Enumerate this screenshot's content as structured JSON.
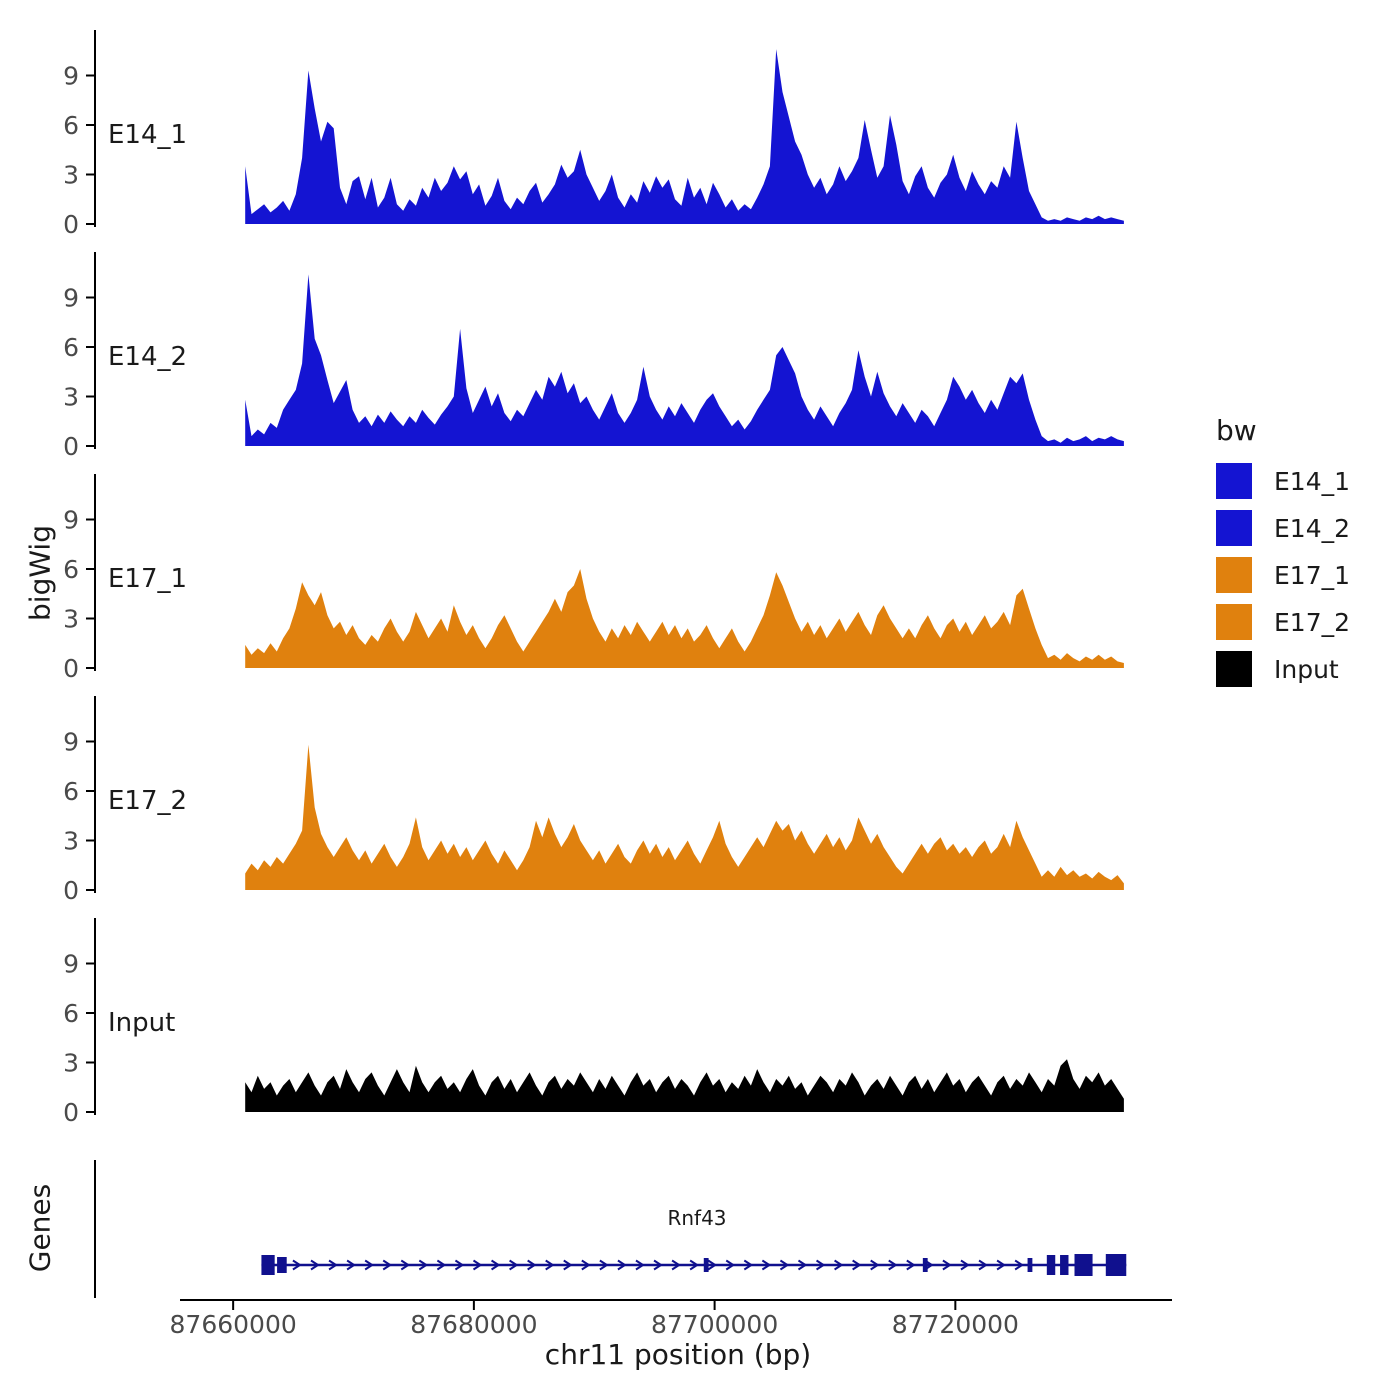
{
  "figure": {
    "y_axis_title": "bigWig",
    "genes_axis_title": "Genes",
    "x_axis_title": "chr11 position (bp)"
  },
  "chart_data": {
    "type": "area",
    "xlabel": "chr11 position (bp)",
    "ylabel": "bigWig",
    "xlim": [
      87656000,
      87738000
    ],
    "ylim": [
      0,
      11
    ],
    "grid": false,
    "legend_position": "right",
    "x_ticks": [
      {
        "pos": 87660000,
        "label": "87660000"
      },
      {
        "pos": 87680000,
        "label": "87680000"
      },
      {
        "pos": 87700000,
        "label": "87700000"
      },
      {
        "pos": 87720000,
        "label": "87720000"
      }
    ],
    "y_ticks": [
      {
        "v": 0,
        "label": "0"
      },
      {
        "v": 3,
        "label": "3"
      },
      {
        "v": 6,
        "label": "6"
      },
      {
        "v": 9,
        "label": "9"
      }
    ],
    "tracks": [
      {
        "name": "E14_1",
        "color": "#1414D2",
        "x_start": 87661000,
        "x_end": 87734000,
        "values": [
          3.5,
          0.6,
          0.9,
          1.2,
          0.7,
          1.0,
          1.4,
          0.8,
          1.8,
          4.0,
          9.3,
          7.0,
          5.0,
          6.2,
          5.8,
          2.2,
          1.2,
          2.6,
          2.9,
          1.5,
          2.8,
          1.0,
          1.6,
          2.8,
          1.2,
          0.8,
          1.5,
          1.1,
          2.2,
          1.6,
          2.8,
          2.0,
          2.5,
          3.5,
          2.7,
          3.2,
          1.8,
          2.4,
          1.1,
          1.7,
          2.8,
          1.4,
          0.9,
          1.6,
          1.2,
          2.0,
          2.5,
          1.3,
          1.8,
          2.4,
          3.6,
          2.8,
          3.2,
          4.5,
          3.0,
          2.2,
          1.4,
          2.0,
          3.0,
          1.6,
          1.0,
          1.8,
          1.3,
          2.6,
          1.9,
          2.9,
          2.2,
          2.7,
          1.5,
          1.1,
          2.8,
          1.6,
          2.2,
          1.2,
          2.5,
          1.8,
          1.0,
          1.5,
          0.8,
          1.2,
          0.9,
          1.6,
          2.4,
          3.5,
          10.6,
          8.0,
          6.5,
          5.0,
          4.2,
          3.0,
          2.2,
          2.8,
          1.8,
          2.4,
          3.5,
          2.6,
          3.2,
          4.0,
          6.3,
          4.5,
          2.8,
          3.5,
          6.6,
          4.8,
          2.6,
          1.8,
          2.9,
          3.5,
          2.2,
          1.6,
          2.5,
          3.0,
          4.2,
          2.8,
          2.0,
          3.2,
          2.4,
          1.8,
          2.6,
          2.2,
          3.5,
          2.8,
          6.2,
          4.0,
          2.0,
          1.2,
          0.4,
          0.2,
          0.3,
          0.2,
          0.4,
          0.3,
          0.2,
          0.4,
          0.3,
          0.5,
          0.3,
          0.4,
          0.3,
          0.2
        ]
      },
      {
        "name": "E14_2",
        "color": "#1414D2",
        "x_start": 87661000,
        "x_end": 87734000,
        "values": [
          2.8,
          0.6,
          1.0,
          0.7,
          1.4,
          1.1,
          2.2,
          2.8,
          3.4,
          5.0,
          10.4,
          6.5,
          5.5,
          4.0,
          2.6,
          3.3,
          4.0,
          2.2,
          1.4,
          1.8,
          1.2,
          1.9,
          1.4,
          2.1,
          1.6,
          1.2,
          1.8,
          1.4,
          2.2,
          1.7,
          1.3,
          1.9,
          2.4,
          3.0,
          7.1,
          3.5,
          2.0,
          2.8,
          3.6,
          2.4,
          3.2,
          2.0,
          1.5,
          2.2,
          1.8,
          2.6,
          3.4,
          2.8,
          4.2,
          3.6,
          4.5,
          3.2,
          3.8,
          2.6,
          3.0,
          2.2,
          1.6,
          2.4,
          3.2,
          2.0,
          1.4,
          2.0,
          2.8,
          4.8,
          3.0,
          2.2,
          1.6,
          2.4,
          1.8,
          2.6,
          2.0,
          1.4,
          2.2,
          2.8,
          3.2,
          2.4,
          1.8,
          1.2,
          1.6,
          1.0,
          1.5,
          2.2,
          2.8,
          3.4,
          5.5,
          6.0,
          5.2,
          4.4,
          3.0,
          2.2,
          1.6,
          2.4,
          1.8,
          1.2,
          2.0,
          2.6,
          3.4,
          5.8,
          4.2,
          3.0,
          4.5,
          3.2,
          2.4,
          1.8,
          2.6,
          2.0,
          1.4,
          2.2,
          1.8,
          1.2,
          2.0,
          2.8,
          4.2,
          3.6,
          2.8,
          3.4,
          2.6,
          2.0,
          2.8,
          2.2,
          3.2,
          4.2,
          3.8,
          4.4,
          2.8,
          1.6,
          0.6,
          0.3,
          0.4,
          0.2,
          0.5,
          0.3,
          0.4,
          0.6,
          0.3,
          0.5,
          0.4,
          0.6,
          0.4,
          0.3
        ]
      },
      {
        "name": "E17_1",
        "color": "#E0810E",
        "x_start": 87661000,
        "x_end": 87734000,
        "values": [
          1.4,
          0.8,
          1.2,
          0.9,
          1.5,
          1.0,
          1.8,
          2.4,
          3.6,
          5.2,
          4.4,
          3.8,
          4.6,
          3.2,
          2.4,
          2.8,
          2.0,
          2.6,
          1.8,
          1.4,
          2.0,
          1.6,
          2.4,
          3.0,
          2.2,
          1.6,
          2.2,
          3.4,
          2.6,
          1.8,
          2.4,
          3.0,
          2.2,
          3.8,
          2.8,
          2.0,
          2.6,
          1.8,
          1.2,
          1.8,
          2.6,
          3.2,
          2.4,
          1.6,
          1.0,
          1.6,
          2.2,
          2.8,
          3.4,
          4.2,
          3.4,
          4.6,
          5.0,
          6.0,
          4.2,
          3.0,
          2.2,
          1.6,
          2.4,
          1.8,
          2.6,
          2.0,
          2.8,
          2.2,
          1.6,
          2.2,
          2.8,
          2.0,
          2.6,
          1.8,
          2.4,
          1.6,
          2.0,
          2.6,
          1.8,
          1.2,
          1.8,
          2.4,
          1.6,
          1.0,
          1.6,
          2.4,
          3.2,
          4.4,
          5.8,
          5.0,
          4.0,
          3.0,
          2.2,
          2.8,
          2.0,
          2.6,
          1.8,
          2.4,
          3.0,
          2.2,
          2.8,
          3.4,
          2.6,
          2.0,
          3.2,
          3.8,
          3.0,
          2.4,
          1.8,
          2.4,
          1.8,
          2.6,
          3.2,
          2.4,
          1.8,
          2.6,
          3.0,
          2.2,
          2.8,
          2.0,
          2.6,
          3.2,
          2.4,
          2.8,
          3.4,
          2.6,
          4.4,
          4.8,
          3.6,
          2.4,
          1.4,
          0.6,
          0.8,
          0.5,
          0.9,
          0.6,
          0.4,
          0.7,
          0.5,
          0.8,
          0.5,
          0.7,
          0.4,
          0.3
        ]
      },
      {
        "name": "E17_2",
        "color": "#E0810E",
        "x_start": 87661000,
        "x_end": 87734000,
        "values": [
          1.0,
          1.6,
          1.2,
          1.8,
          1.4,
          2.0,
          1.6,
          2.2,
          2.8,
          3.6,
          8.8,
          5.0,
          3.4,
          2.6,
          2.0,
          2.6,
          3.2,
          2.4,
          1.8,
          2.4,
          1.6,
          2.2,
          2.8,
          2.0,
          1.4,
          2.0,
          2.8,
          4.4,
          2.6,
          1.8,
          2.4,
          3.0,
          2.2,
          2.8,
          2.0,
          2.6,
          1.8,
          2.4,
          3.0,
          2.2,
          1.6,
          2.4,
          1.8,
          1.2,
          1.8,
          2.6,
          4.2,
          3.2,
          4.4,
          3.4,
          2.6,
          3.2,
          4.0,
          3.0,
          2.4,
          1.8,
          2.4,
          1.6,
          2.2,
          2.8,
          2.0,
          1.6,
          2.4,
          3.0,
          2.2,
          2.8,
          2.0,
          2.6,
          1.8,
          2.4,
          3.0,
          2.2,
          1.6,
          2.4,
          3.2,
          4.2,
          2.8,
          2.0,
          1.4,
          2.0,
          2.6,
          3.2,
          2.6,
          3.4,
          4.2,
          3.6,
          4.0,
          3.0,
          3.6,
          2.8,
          2.2,
          2.8,
          3.4,
          2.6,
          3.2,
          2.4,
          3.0,
          4.4,
          3.6,
          2.8,
          3.4,
          2.6,
          2.0,
          1.4,
          1.0,
          1.6,
          2.2,
          2.8,
          2.2,
          2.8,
          3.2,
          2.4,
          2.8,
          2.2,
          2.6,
          2.0,
          2.6,
          3.0,
          2.2,
          2.6,
          3.4,
          2.6,
          4.2,
          3.2,
          2.4,
          1.6,
          0.8,
          1.2,
          0.8,
          1.4,
          0.9,
          1.2,
          0.8,
          1.0,
          0.7,
          1.1,
          0.8,
          0.6,
          0.9,
          0.4
        ]
      },
      {
        "name": "Input",
        "color": "#000000",
        "x_start": 87661000,
        "x_end": 87734000,
        "values": [
          1.8,
          1.2,
          2.2,
          1.4,
          1.8,
          1.0,
          1.6,
          2.0,
          1.2,
          1.8,
          2.4,
          1.6,
          1.0,
          1.8,
          2.2,
          1.4,
          2.6,
          1.8,
          1.2,
          2.0,
          2.4,
          1.6,
          1.0,
          1.8,
          2.6,
          1.8,
          1.2,
          2.8,
          1.8,
          1.2,
          1.8,
          2.2,
          1.4,
          1.8,
          1.2,
          2.0,
          2.6,
          1.6,
          1.0,
          1.8,
          2.2,
          1.4,
          2.0,
          1.2,
          1.8,
          2.4,
          1.6,
          1.0,
          1.8,
          2.2,
          1.4,
          2.0,
          1.6,
          2.4,
          1.8,
          1.2,
          2.0,
          1.4,
          2.2,
          1.6,
          1.0,
          1.8,
          2.4,
          1.6,
          2.0,
          1.2,
          1.8,
          2.2,
          1.4,
          2.0,
          1.6,
          1.0,
          1.8,
          2.4,
          1.6,
          2.0,
          1.2,
          1.8,
          1.4,
          2.2,
          1.6,
          2.6,
          1.8,
          1.2,
          2.0,
          1.6,
          2.2,
          1.4,
          1.8,
          1.0,
          1.6,
          2.2,
          1.8,
          1.2,
          2.0,
          1.6,
          2.4,
          1.8,
          1.0,
          1.6,
          2.0,
          1.4,
          2.2,
          1.6,
          1.0,
          1.8,
          2.2,
          1.4,
          2.0,
          1.2,
          1.8,
          2.4,
          1.6,
          2.0,
          1.2,
          1.8,
          2.2,
          1.6,
          1.0,
          1.8,
          2.2,
          1.4,
          2.0,
          1.6,
          2.4,
          1.8,
          1.2,
          2.0,
          1.6,
          2.8,
          3.2,
          2.0,
          1.4,
          2.2,
          1.8,
          2.4,
          1.6,
          2.0,
          1.4,
          0.8
        ]
      }
    ],
    "gene_track": {
      "label": "Rnf43",
      "color": "#10108E",
      "start": 87662350,
      "end": 87734200,
      "strand": "+",
      "arrow_start": 87665300,
      "arrow_end": 87726500,
      "arrow_step": 1500,
      "exons": [
        [
          87662350,
          87663450,
          20
        ],
        [
          87663650,
          87664450,
          16
        ],
        [
          87699100,
          87699500,
          14
        ],
        [
          87717300,
          87717700,
          14
        ],
        [
          87726000,
          87726400,
          14
        ],
        [
          87727600,
          87728300,
          20
        ],
        [
          87728700,
          87729400,
          20
        ],
        [
          87729900,
          87731400,
          22
        ],
        [
          87732500,
          87734200,
          22
        ]
      ]
    },
    "legend": {
      "title": "bw",
      "items": [
        {
          "label": "E14_1",
          "color": "#1414D2"
        },
        {
          "label": "E14_2",
          "color": "#1414D2"
        },
        {
          "label": "E17_1",
          "color": "#E0810E"
        },
        {
          "label": "E17_2",
          "color": "#E0810E"
        },
        {
          "label": "Input",
          "color": "#000000"
        }
      ]
    }
  }
}
